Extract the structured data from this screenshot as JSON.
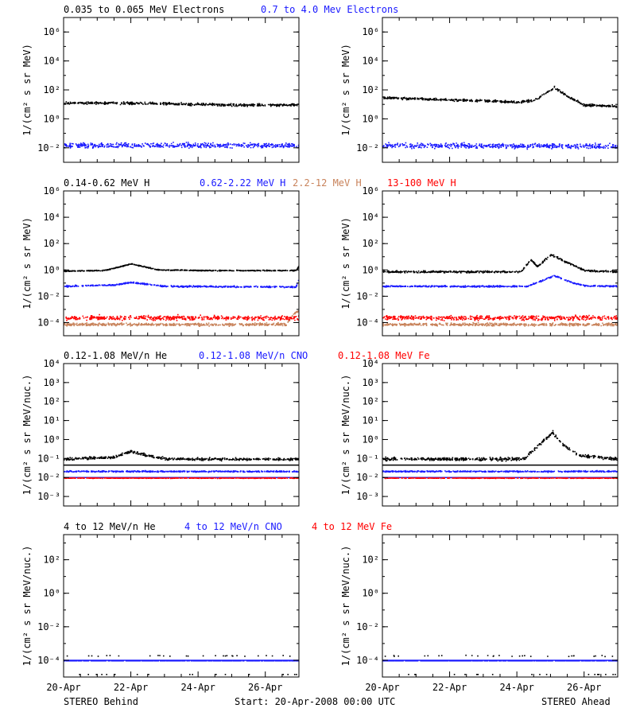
{
  "colors": {
    "black": "#000000",
    "blue": "#1a1aff",
    "red": "#ff0000",
    "tan": "#c8825a"
  },
  "footer": {
    "left": "STEREO Behind",
    "center": "Start: 20-Apr-2008 00:00 UTC",
    "right": "STEREO Ahead"
  },
  "x_ticks": [
    "20-Apr",
    "22-Apr",
    "24-Apr",
    "26-Apr"
  ],
  "chart_data": [
    {
      "type": "scatter",
      "row": 1,
      "legend": [
        {
          "text": "0.035 to 0.065 MeV Electrons",
          "color": "#000000"
        },
        {
          "text": "0.7 to 4.0 Mev Electrons",
          "color": "#1a1aff"
        }
      ],
      "ylabel": "1/(cm² s sr MeV)",
      "ylog_range": [
        -3,
        7
      ],
      "y_ticks": [
        {
          "v": 6,
          "label": "10⁶"
        },
        {
          "v": 4,
          "label": "10⁴"
        },
        {
          "v": 2,
          "label": "10²"
        },
        {
          "v": 0,
          "label": "10⁰"
        },
        {
          "v": -2,
          "label": "10⁻²"
        }
      ],
      "panels": [
        {
          "side": "behind",
          "series": [
            {
              "name": "0.035 to 0.065 MeV Electrons",
              "color": "#000000",
              "points": [
                [
                  0,
                  1.15
                ],
                [
                  3,
                  1.1
                ],
                [
                  5,
                  1.0
                ],
                [
                  7,
                  1.0
                ]
              ],
              "scatter": 0.12
            },
            {
              "name": "0.7 to 4.0 Mev Electrons",
              "color": "#1a1aff",
              "points": [
                [
                  0,
                  -1.8
                ],
                [
                  7,
                  -1.8
                ]
              ],
              "scatter": 0.25
            }
          ]
        },
        {
          "side": "ahead",
          "series": [
            {
              "name": "0.035 to 0.065 MeV Electrons",
              "color": "#000000",
              "points": [
                [
                  0,
                  1.5
                ],
                [
                  2,
                  1.35
                ],
                [
                  4,
                  1.2
                ],
                [
                  4.5,
                  1.3
                ],
                [
                  5.1,
                  2.2
                ],
                [
                  5.5,
                  1.6
                ],
                [
                  6,
                  1.0
                ],
                [
                  7,
                  0.9
                ]
              ],
              "scatter": 0.12
            },
            {
              "name": "0.7 to 4.0 Mev Electrons",
              "color": "#1a1aff",
              "points": [
                [
                  0,
                  -1.8
                ],
                [
                  7,
                  -1.85
                ]
              ],
              "scatter": 0.25
            }
          ]
        }
      ]
    },
    {
      "type": "scatter",
      "row": 2,
      "legend": [
        {
          "text": "0.14-0.62 MeV H",
          "color": "#000000"
        },
        {
          "text": "0.62-2.22 MeV H",
          "color": "#1a1aff"
        },
        {
          "text": "2.2-12 MeV H",
          "color": "#c8825a"
        },
        {
          "text": "13-100 MeV H",
          "color": "#ff0000"
        }
      ],
      "ylabel": "1/(cm² s sr MeV)",
      "ylog_range": [
        -5,
        6
      ],
      "y_ticks": [
        {
          "v": 6,
          "label": "10⁶"
        },
        {
          "v": 4,
          "label": "10⁴"
        },
        {
          "v": 2,
          "label": "10²"
        },
        {
          "v": 0,
          "label": "10⁰"
        },
        {
          "v": -2,
          "label": "10⁻²"
        },
        {
          "v": -4,
          "label": "10⁻⁴"
        }
      ],
      "panels": [
        {
          "side": "behind",
          "series": [
            {
              "name": "0.14-0.62 MeV H",
              "color": "#000000",
              "points": [
                [
                  0,
                  -0.05
                ],
                [
                  1.2,
                  0.0
                ],
                [
                  2,
                  0.5
                ],
                [
                  2.8,
                  0.05
                ],
                [
                  4,
                  0.0
                ],
                [
                  6.9,
                  0.0
                ],
                [
                  7,
                  0.4
                ]
              ],
              "scatter": 0.05
            },
            {
              "name": "0.62-2.22 MeV H",
              "color": "#1a1aff",
              "points": [
                [
                  0,
                  -1.2
                ],
                [
                  1.5,
                  -1.1
                ],
                [
                  2,
                  -0.9
                ],
                [
                  3,
                  -1.2
                ],
                [
                  6.9,
                  -1.25
                ],
                [
                  7,
                  -0.5
                ]
              ],
              "scatter": 0.08
            },
            {
              "name": "2.2-12 MeV H",
              "color": "#c8825a",
              "points": [
                [
                  0,
                  -4.1
                ],
                [
                  6.6,
                  -4.1
                ],
                [
                  6.8,
                  -3.4
                ],
                [
                  7,
                  -3.0
                ]
              ],
              "scatter": 0.15
            },
            {
              "name": "13-100 MeV H",
              "color": "#ff0000",
              "points": [
                [
                  0,
                  -3.6
                ],
                [
                  7,
                  -3.6
                ]
              ],
              "scatter": 0.25
            }
          ]
        },
        {
          "side": "ahead",
          "series": [
            {
              "name": "0.14-0.62 MeV H",
              "color": "#000000",
              "points": [
                [
                  0,
                  -0.1
                ],
                [
                  4.1,
                  -0.1
                ],
                [
                  4.4,
                  0.8
                ],
                [
                  4.6,
                  0.3
                ],
                [
                  5.0,
                  1.2
                ],
                [
                  5.4,
                  0.7
                ],
                [
                  6,
                  0.0
                ],
                [
                  7,
                  -0.1
                ]
              ],
              "scatter": 0.1
            },
            {
              "name": "0.62-2.22 MeV H",
              "color": "#1a1aff",
              "points": [
                [
                  0,
                  -1.2
                ],
                [
                  4.3,
                  -1.2
                ],
                [
                  5.1,
                  -0.4
                ],
                [
                  5.6,
                  -0.9
                ],
                [
                  6,
                  -1.15
                ],
                [
                  7,
                  -1.2
                ]
              ],
              "scatter": 0.08
            },
            {
              "name": "2.2-12 MeV H",
              "color": "#c8825a",
              "points": [
                [
                  0,
                  -4.1
                ],
                [
                  7,
                  -4.1
                ]
              ],
              "scatter": 0.15
            },
            {
              "name": "13-100 MeV H",
              "color": "#ff0000",
              "points": [
                [
                  0,
                  -3.6
                ],
                [
                  7,
                  -3.6
                ]
              ],
              "scatter": 0.25
            }
          ]
        }
      ]
    },
    {
      "type": "scatter",
      "row": 3,
      "legend": [
        {
          "text": "0.12-1.08 MeV/n He",
          "color": "#000000"
        },
        {
          "text": "0.12-1.08 MeV/n CNO",
          "color": "#1a1aff"
        },
        {
          "text": "0.12-1.08 MeV Fe",
          "color": "#ff0000"
        }
      ],
      "ylabel": "1/(cm² s sr MeV/nuc.)",
      "ylog_range": [
        -3.5,
        4
      ],
      "y_ticks": [
        {
          "v": 4,
          "label": "10⁴"
        },
        {
          "v": 3,
          "label": "10³"
        },
        {
          "v": 2,
          "label": "10²"
        },
        {
          "v": 1,
          "label": "10¹"
        },
        {
          "v": 0,
          "label": "10⁰"
        },
        {
          "v": -1,
          "label": "10⁻¹"
        },
        {
          "v": -2,
          "label": "10⁻²"
        },
        {
          "v": -3,
          "label": "10⁻³"
        }
      ],
      "panels": [
        {
          "side": "behind",
          "series": [
            {
              "name": "0.12-1.08 MeV/n He",
              "color": "#000000",
              "points": [
                [
                  0,
                  -1.0
                ],
                [
                  1.5,
                  -0.9
                ],
                [
                  2,
                  -0.6
                ],
                [
                  2.7,
                  -0.9
                ],
                [
                  3.2,
                  -1.0
                ],
                [
                  7,
                  -1.0
                ]
              ],
              "scatter": 0.1,
              "baseline": -1.35
            },
            {
              "name": "0.12-1.08 MeV/n CNO",
              "color": "#1a1aff",
              "points": [
                [
                  0,
                  -1.65
                ],
                [
                  7,
                  -1.65
                ]
              ],
              "scatter": 0.05,
              "baseline": -2.0
            },
            {
              "name": "0.12-1.08 MeV Fe",
              "color": "#ff0000",
              "points": [
                [
                  0,
                  -2.0
                ],
                [
                  7,
                  -2.0
                ]
              ],
              "scatter": 0.02
            }
          ]
        },
        {
          "side": "ahead",
          "series": [
            {
              "name": "0.12-1.08 MeV/n He",
              "color": "#000000",
              "points": [
                [
                  0,
                  -1.0
                ],
                [
                  4.2,
                  -1.0
                ],
                [
                  4.6,
                  -0.3
                ],
                [
                  5.05,
                  0.4
                ],
                [
                  5.4,
                  -0.3
                ],
                [
                  5.8,
                  -0.8
                ],
                [
                  7,
                  -1.0
                ]
              ],
              "scatter": 0.12,
              "baseline": -1.35
            },
            {
              "name": "0.12-1.08 MeV/n CNO",
              "color": "#1a1aff",
              "points": [
                [
                  0,
                  -1.65
                ],
                [
                  7,
                  -1.65
                ]
              ],
              "scatter": 0.05,
              "baseline": -2.0
            },
            {
              "name": "0.12-1.08 MeV Fe",
              "color": "#ff0000",
              "points": [
                [
                  0,
                  -2.0
                ],
                [
                  7,
                  -2.0
                ]
              ],
              "scatter": 0.02
            }
          ]
        }
      ]
    },
    {
      "type": "scatter",
      "row": 4,
      "legend": [
        {
          "text": "4 to 12 MeV/n He",
          "color": "#000000"
        },
        {
          "text": "4 to 12 MeV/n CNO",
          "color": "#1a1aff"
        },
        {
          "text": "4 to 12 MeV Fe",
          "color": "#ff0000"
        }
      ],
      "ylabel": "1/(cm² s sr MeV/nuc.)",
      "ylog_range": [
        -5,
        3.5
      ],
      "y_ticks": [
        {
          "v": 2,
          "label": "10²"
        },
        {
          "v": 0,
          "label": "10⁰"
        },
        {
          "v": -2,
          "label": "10⁻²"
        },
        {
          "v": -4,
          "label": "10⁻⁴"
        }
      ],
      "panels": [
        {
          "side": "behind",
          "series": [
            {
              "name": "4 to 12 MeV/n He",
              "color": "#000000",
              "points": [
                [
                  0,
                  -3.7
                ],
                [
                  7,
                  -3.7
                ]
              ],
              "scatter": 0.05,
              "sparse": 0.08
            },
            {
              "name": "4 to 12 MeV/n CNO",
              "color": "#1a1aff",
              "points": [
                [
                  0,
                  -4.0
                ],
                [
                  7,
                  -4.0
                ]
              ],
              "scatter": 0.0,
              "baseline": -4.0
            }
          ]
        },
        {
          "side": "ahead",
          "series": [
            {
              "name": "4 to 12 MeV/n He",
              "color": "#000000",
              "points": [
                [
                  0,
                  -3.7
                ],
                [
                  7,
                  -3.7
                ]
              ],
              "scatter": 0.05,
              "sparse": 0.08
            },
            {
              "name": "4 to 12 MeV/n CNO",
              "color": "#1a1aff",
              "points": [
                [
                  0,
                  -4.0
                ],
                [
                  7,
                  -4.0
                ]
              ],
              "scatter": 0.0,
              "baseline": -4.0
            }
          ]
        }
      ]
    }
  ]
}
